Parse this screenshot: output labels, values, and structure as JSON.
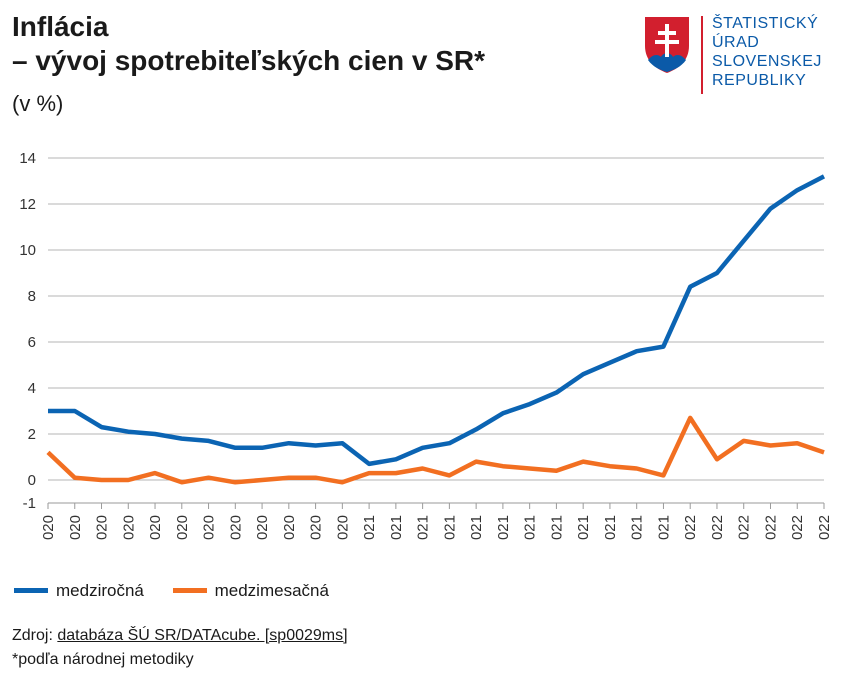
{
  "header": {
    "title_line1": "Inflácia",
    "title_line2": "– vývoj spotrebiteľských cien v SR*",
    "subtitle": "(v %)"
  },
  "logo": {
    "icon": "slovak-coat-of-arms-icon",
    "lines": [
      "ŠTATISTICKÝ",
      "ÚRAD",
      "SLOVENSKEJ",
      "REPUBLIKY"
    ],
    "color": "#0b5aa8"
  },
  "legend": {
    "items": [
      {
        "label": "medziročná",
        "color": "#0b64b3"
      },
      {
        "label": "medzimesačná",
        "color": "#f26f21"
      }
    ]
  },
  "source": {
    "prefix": "Zdroj: ",
    "link_text": "databáza ŠÚ SR/DATAcube. [sp0029ms]",
    "note": "*podľa národnej metodiky"
  },
  "chart_data": {
    "type": "line",
    "y_ticks": [
      -1,
      0,
      2,
      4,
      6,
      8,
      10,
      12,
      14
    ],
    "ylim": [
      -1,
      14
    ],
    "grid": true,
    "legend_position": "bottom-left",
    "x": [
      "020",
      "020",
      "020",
      "020",
      "020",
      "020",
      "020",
      "020",
      "020",
      "020",
      "020",
      "020",
      "021",
      "021",
      "021",
      "021",
      "021",
      "021",
      "021",
      "021",
      "021",
      "021",
      "021",
      "021",
      "022",
      "022",
      "022",
      "022",
      "022",
      "022"
    ],
    "series": [
      {
        "name": "medziročná",
        "color": "#0b64b3",
        "values": [
          3.0,
          3.0,
          2.3,
          2.1,
          2.0,
          1.8,
          1.7,
          1.4,
          1.4,
          1.6,
          1.5,
          1.6,
          0.7,
          0.9,
          1.4,
          1.6,
          2.2,
          2.9,
          3.3,
          3.8,
          4.6,
          5.1,
          5.6,
          5.8,
          8.4,
          9.0,
          10.4,
          11.8,
          12.6,
          13.2
        ]
      },
      {
        "name": "medzimesačná",
        "color": "#f26f21",
        "values": [
          1.2,
          0.1,
          0.0,
          0.0,
          0.3,
          -0.1,
          0.1,
          -0.1,
          0.0,
          0.1,
          0.1,
          -0.1,
          0.3,
          0.3,
          0.5,
          0.2,
          0.8,
          0.6,
          0.5,
          0.4,
          0.8,
          0.6,
          0.5,
          0.2,
          2.7,
          0.9,
          1.7,
          1.5,
          1.6,
          1.2
        ]
      }
    ]
  }
}
